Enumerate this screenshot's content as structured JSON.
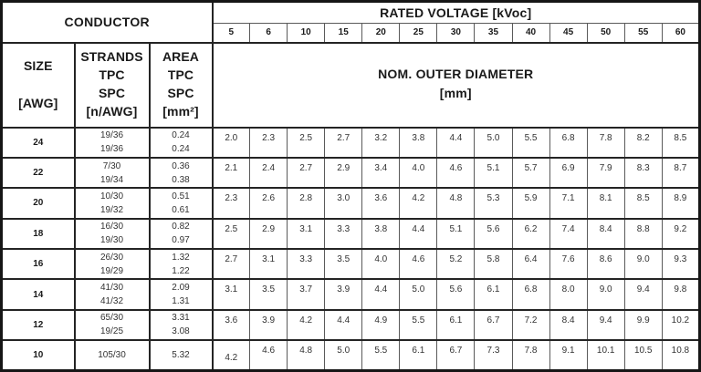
{
  "table": {
    "conductor_header": "CONDUCTOR",
    "rated_voltage_header": "RATED VOLTAGE [kVoc]",
    "voltages": [
      "5",
      "6",
      "10",
      "15",
      "20",
      "25",
      "30",
      "35",
      "40",
      "45",
      "50",
      "55",
      "60"
    ],
    "size_header_lines": [
      "SIZE",
      "[AWG]"
    ],
    "strands_header_lines": [
      "STRANDS",
      "TPC",
      "SPC",
      "[n/AWG]"
    ],
    "area_header_lines": [
      "AREA",
      "TPC",
      "SPC",
      "[mm²]"
    ],
    "diameter_header_lines": [
      "NOM. OUTER DIAMETER",
      "[mm]"
    ],
    "rows": [
      {
        "size": "24",
        "strands": [
          "19/36",
          "19/36"
        ],
        "area": [
          "0.24",
          "0.24"
        ],
        "diameters": [
          "2.0",
          "2.3",
          "2.5",
          "2.7",
          "3.2",
          "3.8",
          "4.4",
          "5.0",
          "5.5",
          "6.8",
          "7.8",
          "8.2",
          "8.5"
        ]
      },
      {
        "size": "22",
        "strands": [
          "7/30",
          "19/34"
        ],
        "area": [
          "0.36",
          "0.38"
        ],
        "diameters": [
          "2.1",
          "2.4",
          "2.7",
          "2.9",
          "3.4",
          "4.0",
          "4.6",
          "5.1",
          "5.7",
          "6.9",
          "7.9",
          "8.3",
          "8.7"
        ]
      },
      {
        "size": "20",
        "strands": [
          "10/30",
          "19/32"
        ],
        "area": [
          "0.51",
          "0.61"
        ],
        "diameters": [
          "2.3",
          "2.6",
          "2.8",
          "3.0",
          "3.6",
          "4.2",
          "4.8",
          "5.3",
          "5.9",
          "7.1",
          "8.1",
          "8.5",
          "8.9"
        ]
      },
      {
        "size": "18",
        "strands": [
          "16/30",
          "19/30"
        ],
        "area": [
          "0.82",
          "0.97"
        ],
        "diameters": [
          "2.5",
          "2.9",
          "3.1",
          "3.3",
          "3.8",
          "4.4",
          "5.1",
          "5.6",
          "6.2",
          "7.4",
          "8.4",
          "8.8",
          "9.2"
        ]
      },
      {
        "size": "16",
        "strands": [
          "26/30",
          "19/29"
        ],
        "area": [
          "1.32",
          "1.22"
        ],
        "diameters": [
          "2.7",
          "3.1",
          "3.3",
          "3.5",
          "4.0",
          "4.6",
          "5.2",
          "5.8",
          "6.4",
          "7.6",
          "8.6",
          "9.0",
          "9.3"
        ]
      },
      {
        "size": "14",
        "strands": [
          "41/30",
          "41/32"
        ],
        "area": [
          "2.09",
          "1.31"
        ],
        "diameters": [
          "3.1",
          "3.5",
          "3.7",
          "3.9",
          "4.4",
          "5.0",
          "5.6",
          "6.1",
          "6.8",
          "8.0",
          "9.0",
          "9.4",
          "9.8"
        ]
      },
      {
        "size": "12",
        "strands": [
          "65/30",
          "19/25"
        ],
        "area": [
          "3.31",
          "3.08"
        ],
        "diameters": [
          "3.6",
          "3.9",
          "4.2",
          "4.4",
          "4.9",
          "5.5",
          "6.1",
          "6.7",
          "7.2",
          "8.4",
          "9.4",
          "9.9",
          "10.2"
        ]
      },
      {
        "size": "10",
        "strands": [
          "105/30"
        ],
        "area": [
          "5.32"
        ],
        "low_diameter_col": 0,
        "diameters": [
          "4.2",
          "4.6",
          "4.8",
          "5.0",
          "5.5",
          "6.1",
          "6.7",
          "7.3",
          "7.8",
          "9.1",
          "10.1",
          "10.5",
          "10.8"
        ]
      }
    ]
  }
}
